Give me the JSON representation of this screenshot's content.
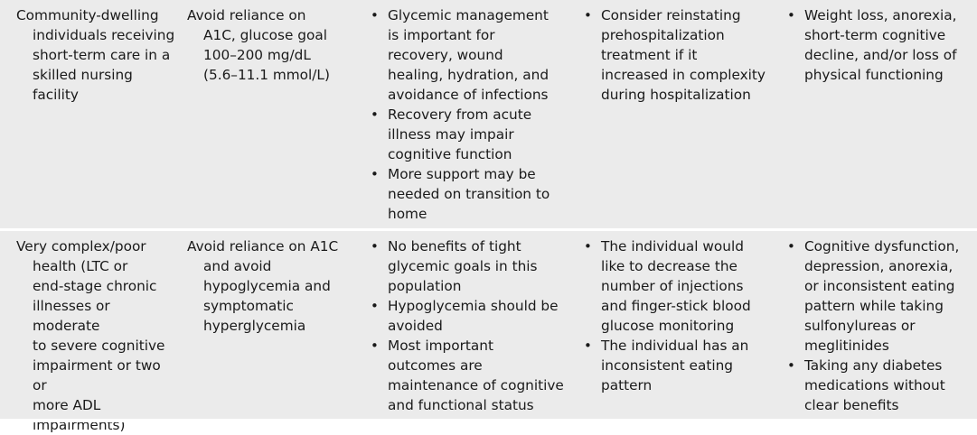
{
  "rows": [
    {
      "population": [
        "Community-dwelling",
        "individuals receiving",
        "short-term care in a",
        "skilled nursing facility"
      ],
      "goal": [
        "Avoid reliance on",
        "A1C, glucose goal",
        "100–200 mg/dL",
        "(5.6–11.1 mmol/L)"
      ],
      "rationale": [
        [
          "Glycemic management",
          "is important for",
          "recovery, wound",
          "healing, hydration, and",
          "avoidance of infections"
        ],
        [
          "Recovery from acute",
          "illness may impair",
          "cognitive function"
        ],
        [
          "More support may be",
          "needed on transition to",
          "home"
        ]
      ],
      "deintensify_when": [
        [
          "Consider reinstating",
          "prehospitalization",
          "treatment if it",
          "increased in complexity",
          "during hospitalization"
        ]
      ],
      "warning_signs": [
        [
          "Weight loss, anorexia,",
          "short-term cognitive",
          "decline, and/or loss of",
          "physical functioning"
        ]
      ]
    },
    {
      "population": [
        "Very complex/poor",
        "health (LTC or",
        "end-stage chronic",
        "illnesses or moderate",
        "to severe cognitive",
        "impairment or two or",
        "more ADL",
        "impairments)"
      ],
      "goal": [
        "Avoid reliance on A1C",
        "and avoid",
        "hypoglycemia and",
        "symptomatic",
        "hyperglycemia"
      ],
      "rationale": [
        [
          "No benefits of tight",
          "glycemic goals in this",
          "population"
        ],
        [
          "Hypoglycemia should be",
          "avoided"
        ],
        [
          "Most important",
          "outcomes are",
          "maintenance of cognitive",
          "and functional status"
        ]
      ],
      "deintensify_when": [
        [
          "The individual would",
          "like to decrease the",
          "number of injections",
          "and finger-stick blood",
          "glucose monitoring"
        ],
        [
          "The individual has an",
          "inconsistent eating",
          "pattern"
        ]
      ],
      "warning_signs": [
        [
          "Cognitive dysfunction,",
          "depression, anorexia,",
          "or inconsistent eating",
          "pattern while taking",
          "sulfonylureas or",
          "meglitinides"
        ],
        [
          "Taking any diabetes",
          "medications without",
          "clear benefits"
        ]
      ]
    }
  ],
  "bullet_glyph": "•",
  "colors": {
    "row_background": "#ebebeb",
    "separator": "#ffffff",
    "text": "#1a1a1a"
  }
}
